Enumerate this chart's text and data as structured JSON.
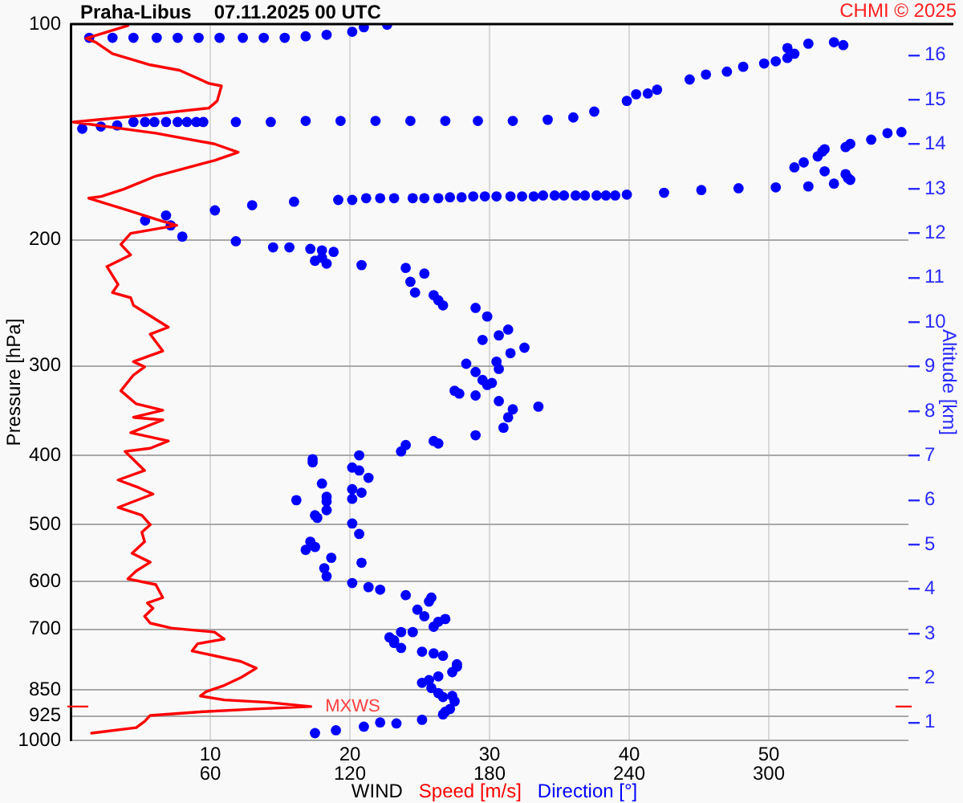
{
  "chart_data": {
    "type": "line",
    "title": "Praha-Libus",
    "subtitle": "07.11.2025 00 UTC",
    "xlabel": "WIND",
    "ylabel": "Pressure [hPa]",
    "y2label": "Altitude [km]",
    "annotations": [
      "CHMI © 2025",
      {
        "text": "MXWS",
        "x": 17.2,
        "y": 897
      }
    ],
    "xlim": [
      0,
      60
    ],
    "xticks": [
      10,
      20,
      30,
      40,
      50
    ],
    "x2lim": [
      0,
      360
    ],
    "x2ticks": [
      60,
      120,
      180,
      240,
      300
    ],
    "ylim": [
      1000,
      100
    ],
    "yticks": [
      100,
      200,
      300,
      400,
      500,
      600,
      700,
      850,
      925,
      1000
    ],
    "y2lim": [
      0.6,
      16.7
    ],
    "y2ticks": [
      1,
      2,
      3,
      4,
      5,
      6,
      7,
      8,
      9,
      10,
      11,
      12,
      13,
      14,
      15,
      16
    ],
    "log": "y",
    "grid": true,
    "legend": "bottom",
    "series": [
      {
        "name": "Speed [m/s]",
        "type": "line",
        "color": "#ff0000",
        "x": [
          1.5,
          4.7,
          5.3,
          5.7,
          9.5,
          13.3,
          17.2,
          14.1,
          11.0,
          9.3,
          9.7,
          11.0,
          12.2,
          13.3,
          12.2,
          8.7,
          9.1,
          11.0,
          10.3,
          7.2,
          5.7,
          5.3,
          5.9,
          5.5,
          6.6,
          6.1,
          4.1,
          4.7,
          5.7,
          4.4,
          5.3,
          5.1,
          5.7,
          5.1,
          3.4,
          5.9,
          4.9,
          3.4,
          5.3,
          3.9,
          5.7,
          7.0,
          4.3,
          6.6,
          4.5,
          6.6,
          4.7,
          3.6,
          4.5,
          5.3,
          4.5,
          6.6,
          5.7,
          7.0,
          4.5,
          4.3,
          3.0,
          3.4,
          2.6,
          4.3,
          3.6,
          4.3,
          7.6,
          6.4,
          4.1,
          1.3,
          2.2,
          3.8,
          6.1,
          10.3,
          12.0,
          10.3,
          6.1,
          0.2,
          5.3,
          9.9,
          10.5,
          10.8,
          9.9,
          7.8,
          5.7,
          3.0,
          1.8,
          1.1,
          4.1
        ],
        "values": [
          977,
          960,
          941,
          923,
          912,
          904,
          897,
          885,
          878,
          867,
          855,
          838,
          817,
          793,
          776,
          750,
          733,
          722,
          706,
          697,
          686,
          671,
          654,
          643,
          632,
          606,
          595,
          580,
          564,
          548,
          528,
          512,
          500,
          485,
          473,
          453,
          444,
          433,
          420,
          395,
          391,
          382,
          372,
          357,
          354,
          346,
          339,
          325,
          309,
          301,
          296,
          286,
          271,
          265,
          247,
          241,
          237,
          231,
          218,
          210,
          203,
          196,
          191,
          188,
          182,
          175,
          174,
          170,
          163,
          155,
          151,
          147,
          142,
          137,
          134,
          131,
          128,
          122,
          121,
          116,
          114,
          110,
          106,
          104.7,
          100.5
        ]
      },
      {
        "name": "Direction [°]",
        "type": "scatter",
        "color": "#0000ff",
        "axis": "x2",
        "marker": "circle",
        "x": [
          105,
          114,
          126,
          140,
          133,
          151,
          160,
          161,
          163,
          165,
          160,
          164,
          158,
          155,
          151,
          154,
          158,
          164,
          166,
          166,
          160,
          156,
          151,
          142,
          139,
          139,
          137,
          147,
          142,
          156,
          158,
          161,
          152,
          149,
          154,
          155,
          144,
          133,
          128,
          121,
          110,
          109,
          125,
          112,
          101,
          105,
          103,
          124,
          121,
          106,
          105,
          110,
          110,
          97,
          121,
          110,
          125,
          121,
          108,
          128,
          124,
          121,
          104,
          104,
          124,
          142,
          144,
          158,
          156,
          174,
          186,
          188,
          190,
          201,
          184,
          174,
          167,
          165,
          179,
          181,
          177,
          174,
          184,
          170,
          183,
          189,
          195,
          177,
          184,
          188,
          179,
          174,
          160,
          158,
          156,
          148,
          146,
          152,
          144,
          125,
          110,
          105,
          108,
          113,
          108,
          103,
          94,
          87,
          71,
          48,
          43,
          32,
          41,
          62,
          78,
          96,
          115,
          121,
          127,
          133,
          139,
          147,
          152,
          158,
          163,
          168,
          173,
          178,
          183,
          189,
          194,
          199,
          203,
          208,
          212,
          217,
          221,
          226,
          230,
          234,
          239,
          255,
          271,
          287,
          303,
          317,
          328,
          335,
          334,
          333,
          324,
          311,
          315,
          321,
          323,
          324,
          333,
          335,
          344,
          351,
          357,
          5,
          13,
          20,
          27,
          32,
          36,
          41,
          46,
          50,
          54,
          57,
          71,
          86,
          101,
          116,
          131,
          146,
          161,
          175,
          190,
          205,
          216,
          225,
          239,
          243,
          248,
          252,
          266,
          273,
          282,
          289,
          298,
          303,
          308,
          311,
          308,
          317,
          328,
          332,
          8,
          18,
          27,
          37,
          46,
          55,
          64,
          74,
          83,
          92,
          101,
          110,
          121,
          126,
          136
        ],
        "values": [
          977,
          968,
          957,
          947,
          944,
          936,
          920,
          912,
          904,
          882,
          870,
          867,
          859,
          845,
          831,
          824,
          814,
          803,
          789,
          783,
          762,
          756,
          752,
          743,
          731,
          725,
          718,
          706,
          706,
          694,
          683,
          677,
          671,
          657,
          640,
          632,
          627,
          616,
          611,
          603,
          590,
          575,
          565,
          556,
          542,
          537,
          528,
          515,
          498,
          489,
          485,
          477,
          464,
          462,
          460,
          457,
          451,
          446,
          438,
          430,
          420,
          416,
          409,
          405,
          400,
          395,
          387,
          385,
          382,
          375,
          366,
          354,
          345,
          342,
          336,
          330,
          328,
          325,
          319,
          317,
          314,
          306,
          303,
          298,
          296,
          288,
          283,
          276,
          272,
          267,
          256,
          249,
          247,
          243,
          239,
          237,
          229,
          223,
          219,
          217,
          216,
          214,
          212,
          208,
          207,
          206,
          205,
          205,
          201,
          198,
          191,
          188,
          185,
          182,
          179,
          177,
          176,
          176,
          175,
          175,
          175,
          175,
          175,
          175,
          174.5,
          174.5,
          174,
          174,
          174,
          174,
          174,
          174,
          173.5,
          173.5,
          173.5,
          173.5,
          173.5,
          173.5,
          173.5,
          173.5,
          173,
          172,
          170.5,
          169.5,
          169,
          168.5,
          167,
          165,
          164,
          162,
          160.5,
          158.5,
          156,
          153,
          150.6,
          149.5,
          148.5,
          147,
          145,
          142,
          141.5,
          140,
          139,
          138.5,
          137,
          137,
          137,
          137,
          137,
          137,
          137,
          137,
          137,
          137,
          136.5,
          136.5,
          136.5,
          136.5,
          136.5,
          136.5,
          136.5,
          136,
          135,
          132.5,
          128,
          125.3,
          125,
          123.5,
          119.5,
          117.6,
          116.5,
          114.7,
          113.5,
          112.7,
          111.5,
          110,
          108,
          106.5,
          106,
          107,
          104.5,
          104.5,
          104.5,
          104.5,
          104.5,
          104.5,
          104.5,
          104.5,
          104.5,
          104.5,
          104,
          103.5,
          102.5,
          101,
          100.2
        ]
      }
    ]
  }
}
